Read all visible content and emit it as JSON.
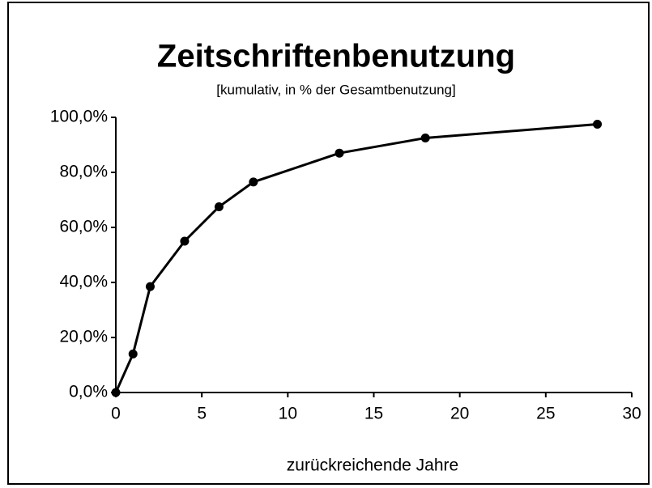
{
  "chart_data": {
    "type": "line",
    "title": "Zeitschriftenbenutzung",
    "subtitle": "[kumulativ, in % der Gesamtbenutzung]",
    "x_label": "zurückreichende Jahre",
    "x": [
      0,
      1,
      2,
      4,
      6,
      8,
      13,
      18,
      28
    ],
    "series": [
      {
        "name": "Zeitschriftenbenutzung",
        "color": "#000000",
        "values": [
          0,
          14,
          38.5,
          55,
          67.5,
          76.5,
          87,
          92.5,
          97.5
        ]
      }
    ],
    "xlim": [
      0,
      30
    ],
    "xticks": [
      0,
      5,
      10,
      15,
      20,
      25,
      30
    ],
    "ylim": [
      0,
      100
    ],
    "yticks": [
      {
        "value": 0,
        "label": "0,0%"
      },
      {
        "value": 20,
        "label": "20,0%"
      },
      {
        "value": 40,
        "label": "40,0%"
      },
      {
        "value": 60,
        "label": "60,0%"
      },
      {
        "value": 80,
        "label": "80,0%"
      },
      {
        "value": 100,
        "label": "100,0%"
      }
    ],
    "grid": false
  }
}
